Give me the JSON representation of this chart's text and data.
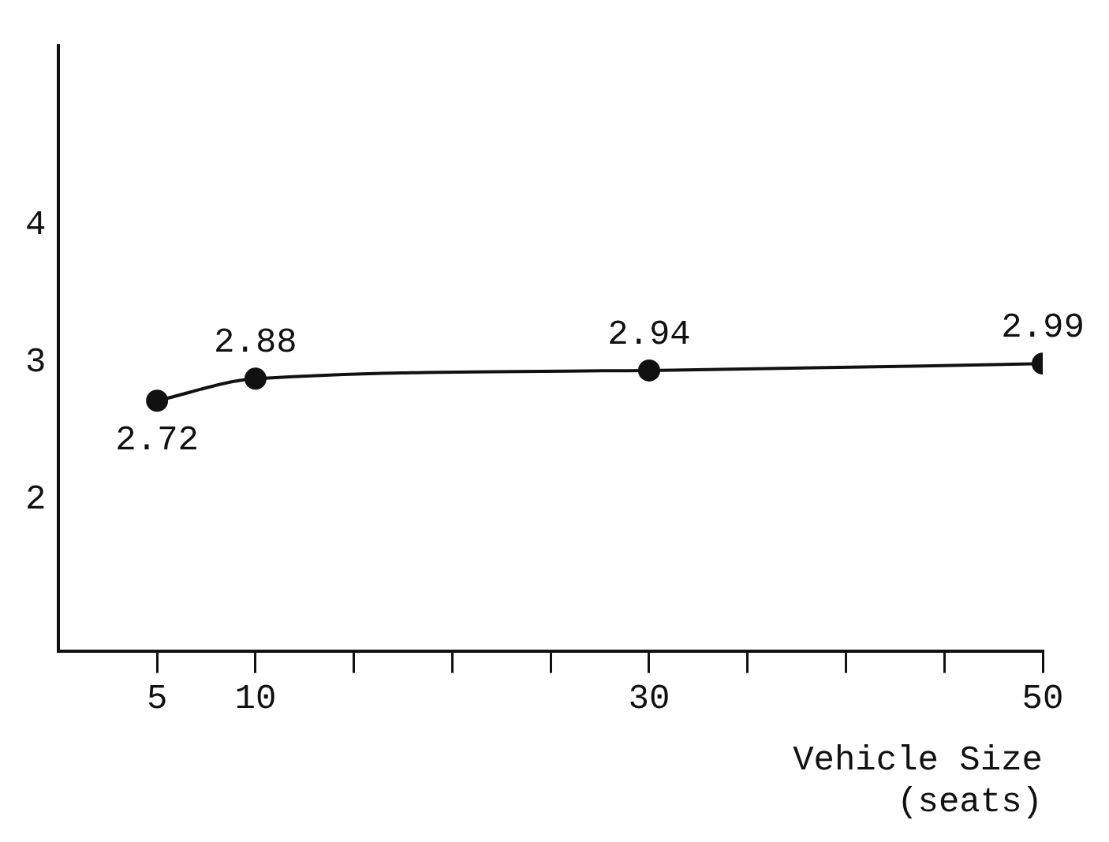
{
  "chart_data": {
    "type": "line",
    "xlabel": "Vehicle Size\n(seats)",
    "x": [
      5,
      10,
      30,
      50
    ],
    "series": [
      {
        "color": "#111111",
        "values": [
          2.72,
          2.88,
          2.94,
          2.99
        ]
      }
    ],
    "xlim": [
      0,
      50
    ],
    "xticks": [
      5,
      10,
      {
        "value": 15,
        "label": null
      },
      {
        "value": 20,
        "label": null
      },
      {
        "value": 25,
        "label": null
      },
      30,
      {
        "value": 35,
        "label": null
      },
      {
        "value": 40,
        "label": null
      },
      {
        "value": 45,
        "label": null
      },
      50
    ],
    "ylim": [
      0.9,
      5.3
    ],
    "yticks": [
      2,
      3,
      4
    ],
    "data_labels": true,
    "marker": "circle",
    "line_style": "solid",
    "grid": false,
    "legend": false
  }
}
